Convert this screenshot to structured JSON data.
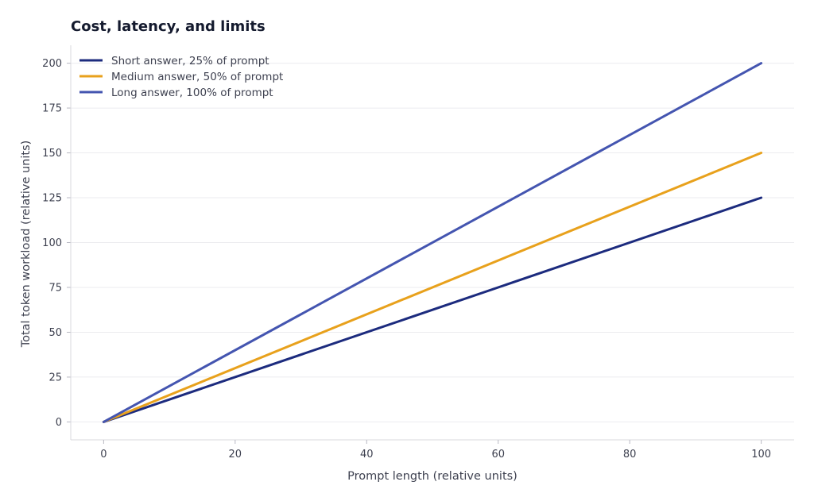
{
  "chart_data": {
    "type": "line",
    "title": "Cost, latency, and limits",
    "xlabel": "Prompt length (relative units)",
    "ylabel": "Total token workload (relative units)",
    "xlim": [
      -5,
      105
    ],
    "ylim": [
      -10,
      210
    ],
    "xticks": [
      0,
      20,
      40,
      60,
      80,
      100
    ],
    "yticks": [
      0,
      25,
      50,
      75,
      100,
      125,
      150,
      175,
      200
    ],
    "grid": "horizontal",
    "legend_position": "top-left",
    "x": [
      0,
      100
    ],
    "series": [
      {
        "name": "Short answer, 25% of prompt",
        "color": "#1c2b7e",
        "values": [
          0,
          125
        ]
      },
      {
        "name": "Medium answer, 50% of prompt",
        "color": "#e8a11c",
        "values": [
          0,
          150
        ]
      },
      {
        "name": "Long answer, 100% of prompt",
        "color": "#4455b0",
        "values": [
          0,
          200
        ]
      }
    ]
  }
}
